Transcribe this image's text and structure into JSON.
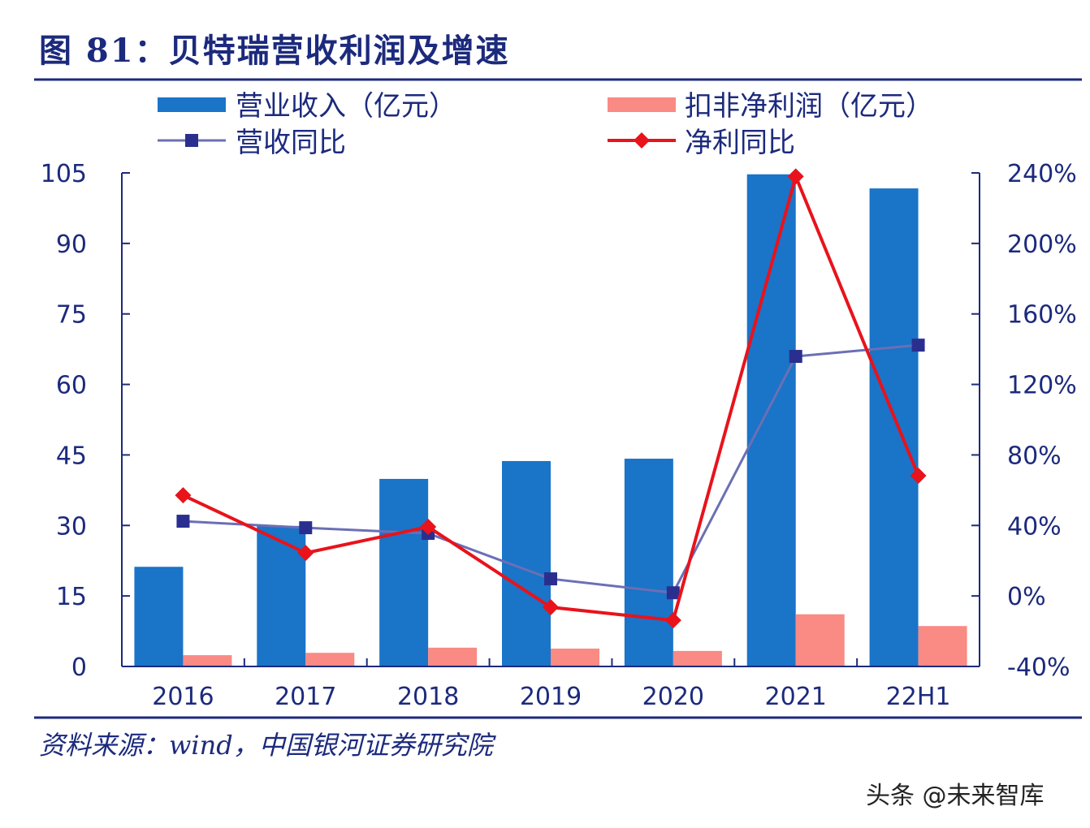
{
  "title": "图 81：贝特瑞营收利润及增速",
  "source": "资料来源：wind，中国银河证券研究院",
  "watermark": "头条 @未来智库",
  "colors": {
    "revenue": "#1a74c8",
    "profit": "#f98a84",
    "revenue_yoy": "#2a2f8f",
    "revenue_yoy_line": "#6b6fb5",
    "profit_yoy": "#e8131b",
    "axis": "#1c2a7d"
  },
  "chart_data": {
    "type": "bar+line",
    "categories": [
      "2016",
      "2017",
      "2018",
      "2019",
      "2020",
      "2021",
      "22H1"
    ],
    "left_axis": {
      "ylim": [
        0,
        105
      ],
      "ticks": [
        "0",
        "15",
        "30",
        "45",
        "60",
        "75",
        "90",
        "105"
      ]
    },
    "right_axis": {
      "ylim": [
        -40,
        240
      ],
      "ticks": [
        "-40%",
        "0%",
        "40%",
        "80%",
        "120%",
        "160%",
        "200%",
        "240%"
      ]
    },
    "legend_position": "top",
    "series": [
      {
        "name": "营业收入（亿元）",
        "type": "bar",
        "axis": "left",
        "values": [
          21.2,
          29.9,
          39.9,
          43.7,
          44.2,
          104.7,
          101.7
        ]
      },
      {
        "name": "扣非净利润（亿元）",
        "type": "bar",
        "axis": "left",
        "values": [
          2.4,
          2.9,
          4.0,
          3.8,
          3.3,
          11.1,
          8.6
        ]
      },
      {
        "name": "营收同比",
        "type": "line",
        "axis": "right",
        "marker": "square",
        "values": [
          42.4,
          38.7,
          35.5,
          9.7,
          1.8,
          135.9,
          142.3
        ]
      },
      {
        "name": "净利同比",
        "type": "line",
        "axis": "right",
        "marker": "diamond",
        "values": [
          57.1,
          24.4,
          39.2,
          -6.4,
          -13.8,
          238,
          68.2
        ]
      }
    ]
  }
}
